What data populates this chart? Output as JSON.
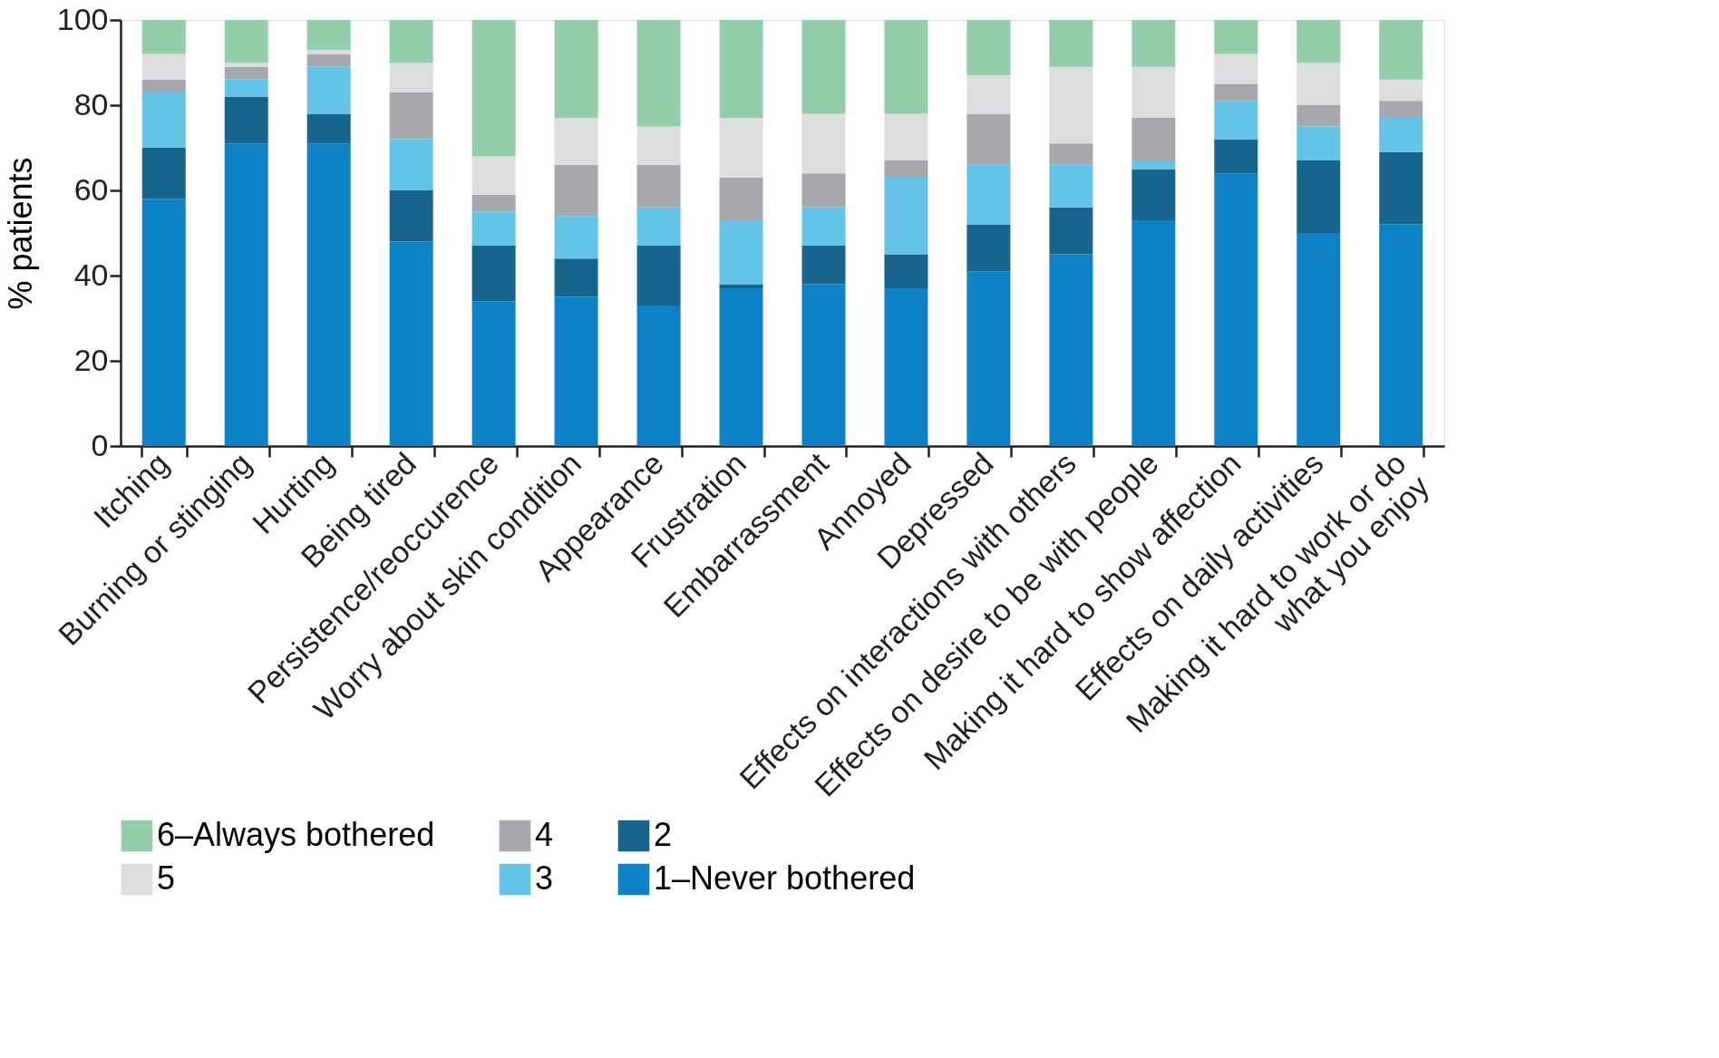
{
  "chart_data": {
    "type": "bar",
    "stacked": true,
    "ylabel": "% patients",
    "ylim": [
      0,
      100
    ],
    "yticks": [
      0,
      20,
      40,
      60,
      80,
      100
    ],
    "grid": false,
    "legend": "bottom",
    "categories": [
      "Itching",
      "Burning or stinging",
      "Hurting",
      "Being tired",
      "Persistence/reoccurence",
      "Worry about skin condition",
      "Appearance",
      "Frustration",
      "Embarrassment",
      "Annoyed",
      "Depressed",
      "Effects on interactions with others",
      "Effects on desire to be with people",
      "Making it hard to show affection",
      "Effects on daily activities",
      "Making it hard to work or do\nwhat you enjoy"
    ],
    "series": [
      {
        "name": "1–Never bothered",
        "color": "#0d82c7",
        "values": [
          58,
          71,
          71,
          48,
          34,
          35,
          33,
          37,
          38,
          37,
          41,
          45,
          53,
          64,
          50,
          52
        ]
      },
      {
        "name": "2",
        "color": "#17648c",
        "values": [
          12,
          11,
          7,
          12,
          13,
          9,
          14,
          1,
          9,
          8,
          11,
          11,
          12,
          8,
          17,
          17
        ]
      },
      {
        "name": "3",
        "color": "#63c4e8",
        "values": [
          13,
          4,
          11,
          12,
          8,
          10,
          9,
          15,
          9,
          18,
          14,
          10,
          2,
          9,
          8,
          8
        ]
      },
      {
        "name": "4",
        "color": "#a7a8ac",
        "values": [
          3,
          3,
          3,
          11,
          4,
          12,
          10,
          10,
          8,
          4,
          12,
          5,
          10,
          4,
          5,
          4
        ]
      },
      {
        "name": "5",
        "color": "#dcdddf",
        "values": [
          6,
          1,
          1,
          7,
          9,
          11,
          9,
          14,
          14,
          11,
          9,
          18,
          12,
          7,
          10,
          5
        ]
      },
      {
        "name": "6–Always bothered",
        "color": "#94cdaa",
        "values": [
          8,
          10,
          7,
          10,
          32,
          23,
          25,
          23,
          22,
          22,
          13,
          11,
          11,
          8,
          10,
          14
        ]
      }
    ]
  }
}
